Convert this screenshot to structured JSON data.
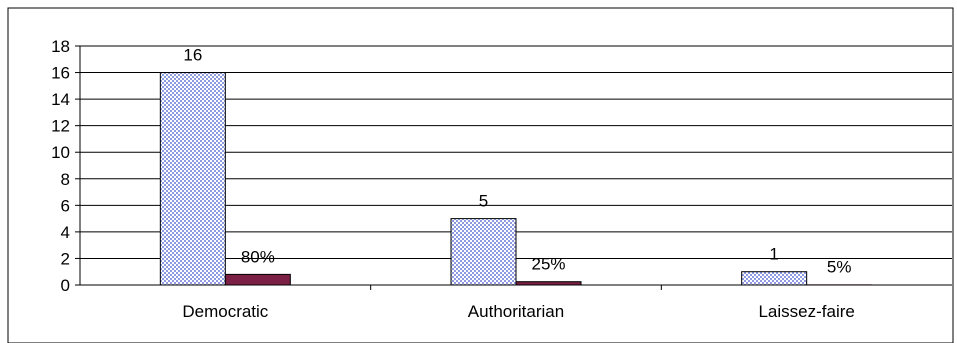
{
  "chart_data": {
    "type": "bar",
    "categories": [
      "Democratic",
      "Authoritarian",
      "Laissez-faire"
    ],
    "series": [
      {
        "values": [
          16,
          5,
          1
        ],
        "labels": [
          "16",
          "5",
          "1"
        ],
        "pattern": "blue-checker"
      },
      {
        "values": [
          0.8,
          0.25,
          0.05
        ],
        "labels": [
          "80%",
          "25%",
          "5%"
        ],
        "color": "#7b1f45"
      }
    ],
    "yticks": [
      "0",
      "2",
      "4",
      "6",
      "8",
      "10",
      "12",
      "14",
      "16",
      "18"
    ],
    "ylim": [
      0,
      18
    ],
    "grid": true,
    "legend": "none"
  }
}
